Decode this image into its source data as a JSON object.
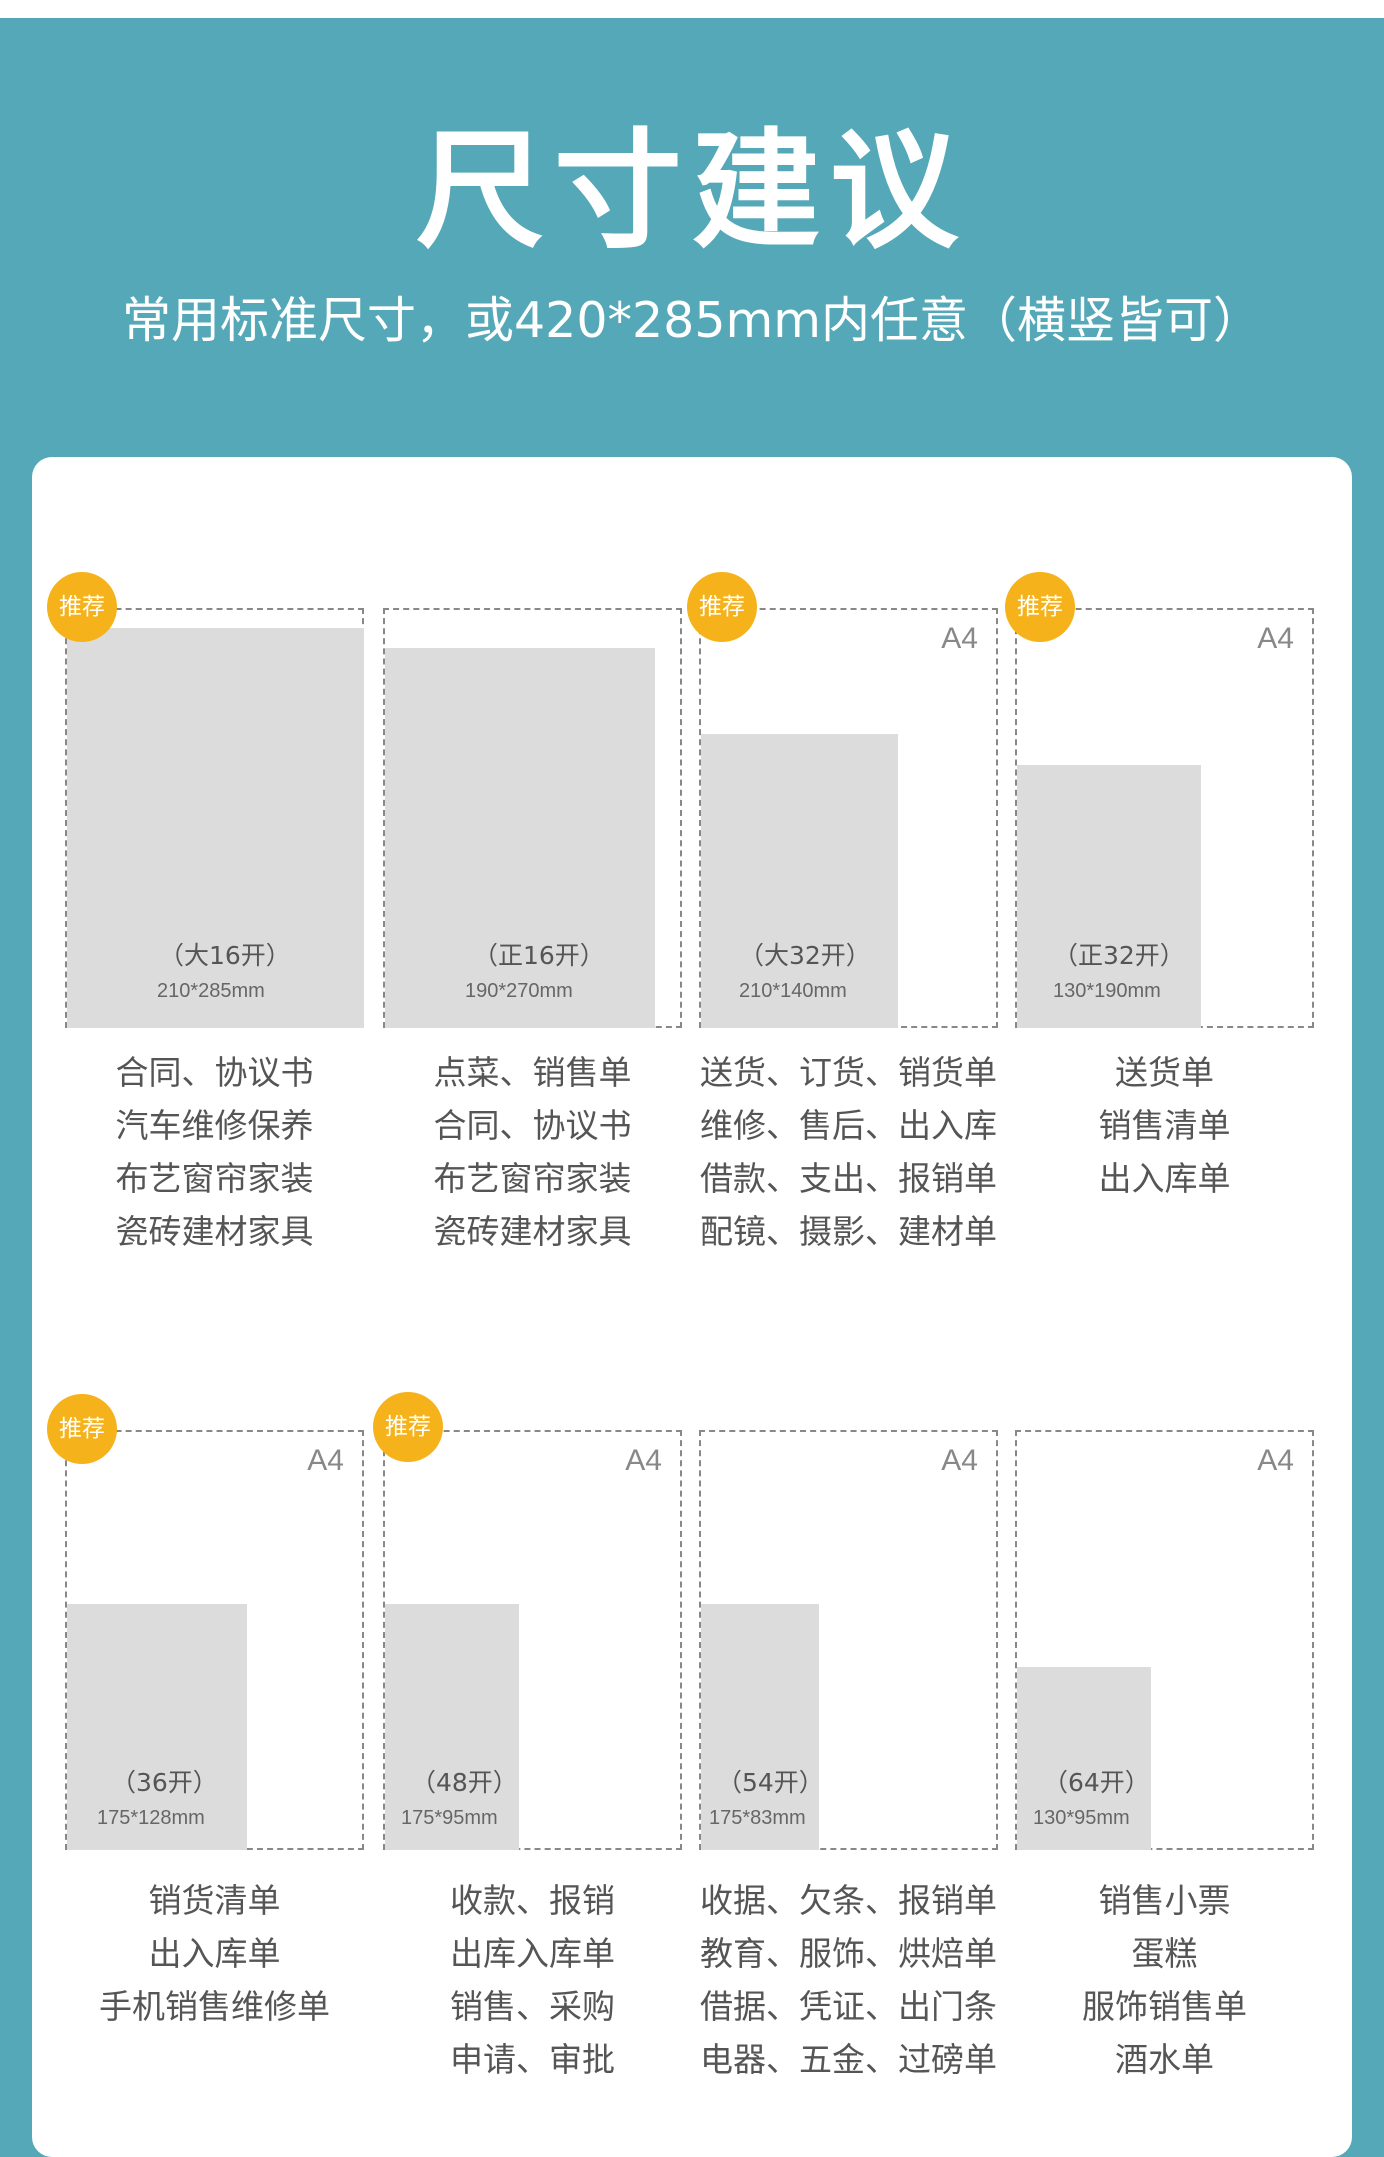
{
  "header": {
    "title": "尺寸建议",
    "subtitle": "常用标准尺寸，或420*285mm内任意（横竖皆可）"
  },
  "sizes": [
    {
      "badge": "推荐",
      "a4": "",
      "format": "（大16开）",
      "dimensions": "210*285mm",
      "uses": [
        "合同、协议书",
        "汽车维修保养",
        "布艺窗帘家装",
        "瓷砖建材家具"
      ]
    },
    {
      "badge": "",
      "a4": "",
      "format": "（正16开）",
      "dimensions": "190*270mm",
      "uses": [
        "点菜、销售单",
        "合同、协议书",
        "布艺窗帘家装",
        "瓷砖建材家具"
      ]
    },
    {
      "badge": "推荐",
      "a4": "A4",
      "format": "（大32开）",
      "dimensions": "210*140mm",
      "uses": [
        "送货、订货、销货单",
        "维修、售后、出入库",
        "借款、支出、报销单",
        "配镜、摄影、建材单"
      ]
    },
    {
      "badge": "推荐",
      "a4": "A4",
      "format": "（正32开）",
      "dimensions": "130*190mm",
      "uses": [
        "送货单",
        "销售清单",
        "出入库单"
      ]
    },
    {
      "badge": "推荐",
      "a4": "A4",
      "format": "（36开）",
      "dimensions": "175*128mm",
      "uses": [
        "销货清单",
        "出入库单",
        "手机销售维修单"
      ]
    },
    {
      "badge": "推荐",
      "a4": "A4",
      "format": "（48开）",
      "dimensions": "175*95mm",
      "uses": [
        "收款、报销",
        "出库入库单",
        "销售、采购",
        "申请、审批"
      ]
    },
    {
      "badge": "",
      "a4": "A4",
      "format": "（54开）",
      "dimensions": "175*83mm",
      "uses": [
        "收据、欠条、报销单",
        "教育、服饰、烘焙单",
        "借据、凭证、出门条",
        "电器、五金、过磅单"
      ]
    },
    {
      "badge": "",
      "a4": "A4",
      "format": "（64开）",
      "dimensions": "130*95mm",
      "uses": [
        "销售小票",
        "蛋糕",
        "服饰销售单",
        "酒水单"
      ]
    }
  ]
}
